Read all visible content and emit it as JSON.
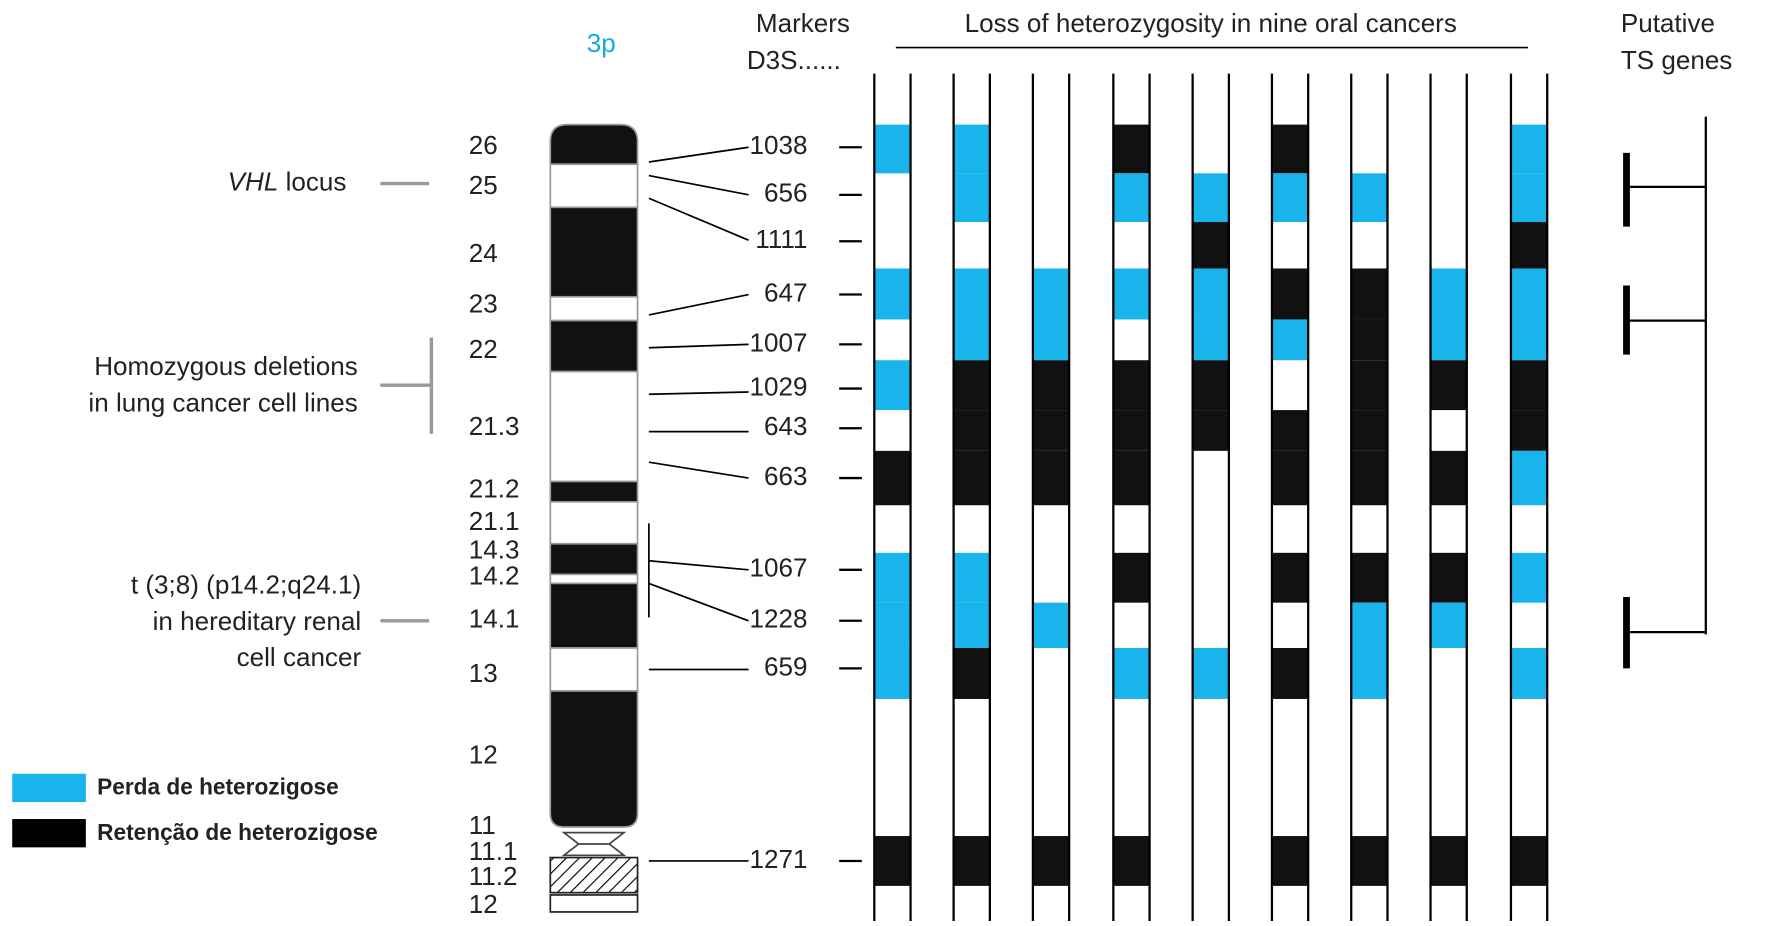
{
  "header": {
    "chromosome": "3p",
    "markers_title": [
      "Markers",
      "D3S......"
    ],
    "loh_title": "Loss of heterozygosity in nine oral cancers",
    "ts_title": [
      "Putative",
      "TS genes"
    ]
  },
  "bands": [
    "26",
    "25",
    "24",
    "23",
    "22",
    "21.3",
    "21.2",
    "21.1",
    "14.3",
    "14.2",
    "14.1",
    "13",
    "12",
    "11",
    "11.1",
    "11.2",
    "12"
  ],
  "markers": [
    "1038",
    "656",
    "1111",
    "647",
    "1007",
    "1029",
    "643",
    "663",
    "1067",
    "1228",
    "659",
    "1271"
  ],
  "annotations": {
    "vhl": {
      "gene": "VHL",
      "text": "locus"
    },
    "deletions": [
      "Homozygous deletions",
      "in lung cancer cell lines"
    ],
    "translocation": [
      "t (3;8) (p14.2;q24.1)",
      "in hereditary renal",
      "cell cancer"
    ]
  },
  "legend": [
    "Perda de heterozigose",
    "Retenção de heterozigose"
  ]
}
